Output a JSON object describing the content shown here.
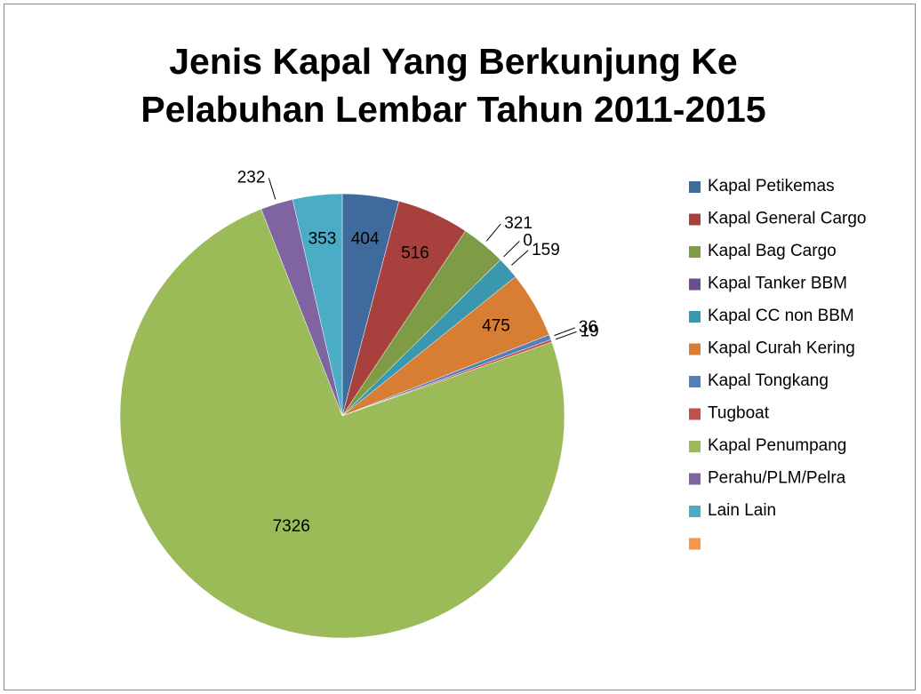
{
  "chart_data": {
    "type": "pie",
    "title": "Jenis Kapal Yang Berkunjung Ke Pelabuhan Lembar Tahun 2011-2015",
    "categories": [
      "Kapal Petikemas",
      "Kapal General Cargo",
      "Kapal Bag Cargo",
      "Kapal Tanker BBM",
      "Kapal CC non BBM",
      "Kapal Curah Kering",
      "Kapal Tongkang",
      "Tugboat",
      "Kapal Penumpang",
      "Perahu/PLM/Pelra",
      "Lain Lain",
      null
    ],
    "values": [
      404,
      516,
      321,
      0,
      159,
      475,
      36,
      19,
      7326,
      232,
      353,
      null
    ],
    "colors": [
      "#3e6a9c",
      "#a8403d",
      "#7e9b46",
      "#694f8d",
      "#3a97b0",
      "#d77d34",
      "#4f81bd",
      "#c0504d",
      "#9bbb59",
      "#8064a2",
      "#4bacc6",
      "#f79646"
    ],
    "legend": "right"
  }
}
